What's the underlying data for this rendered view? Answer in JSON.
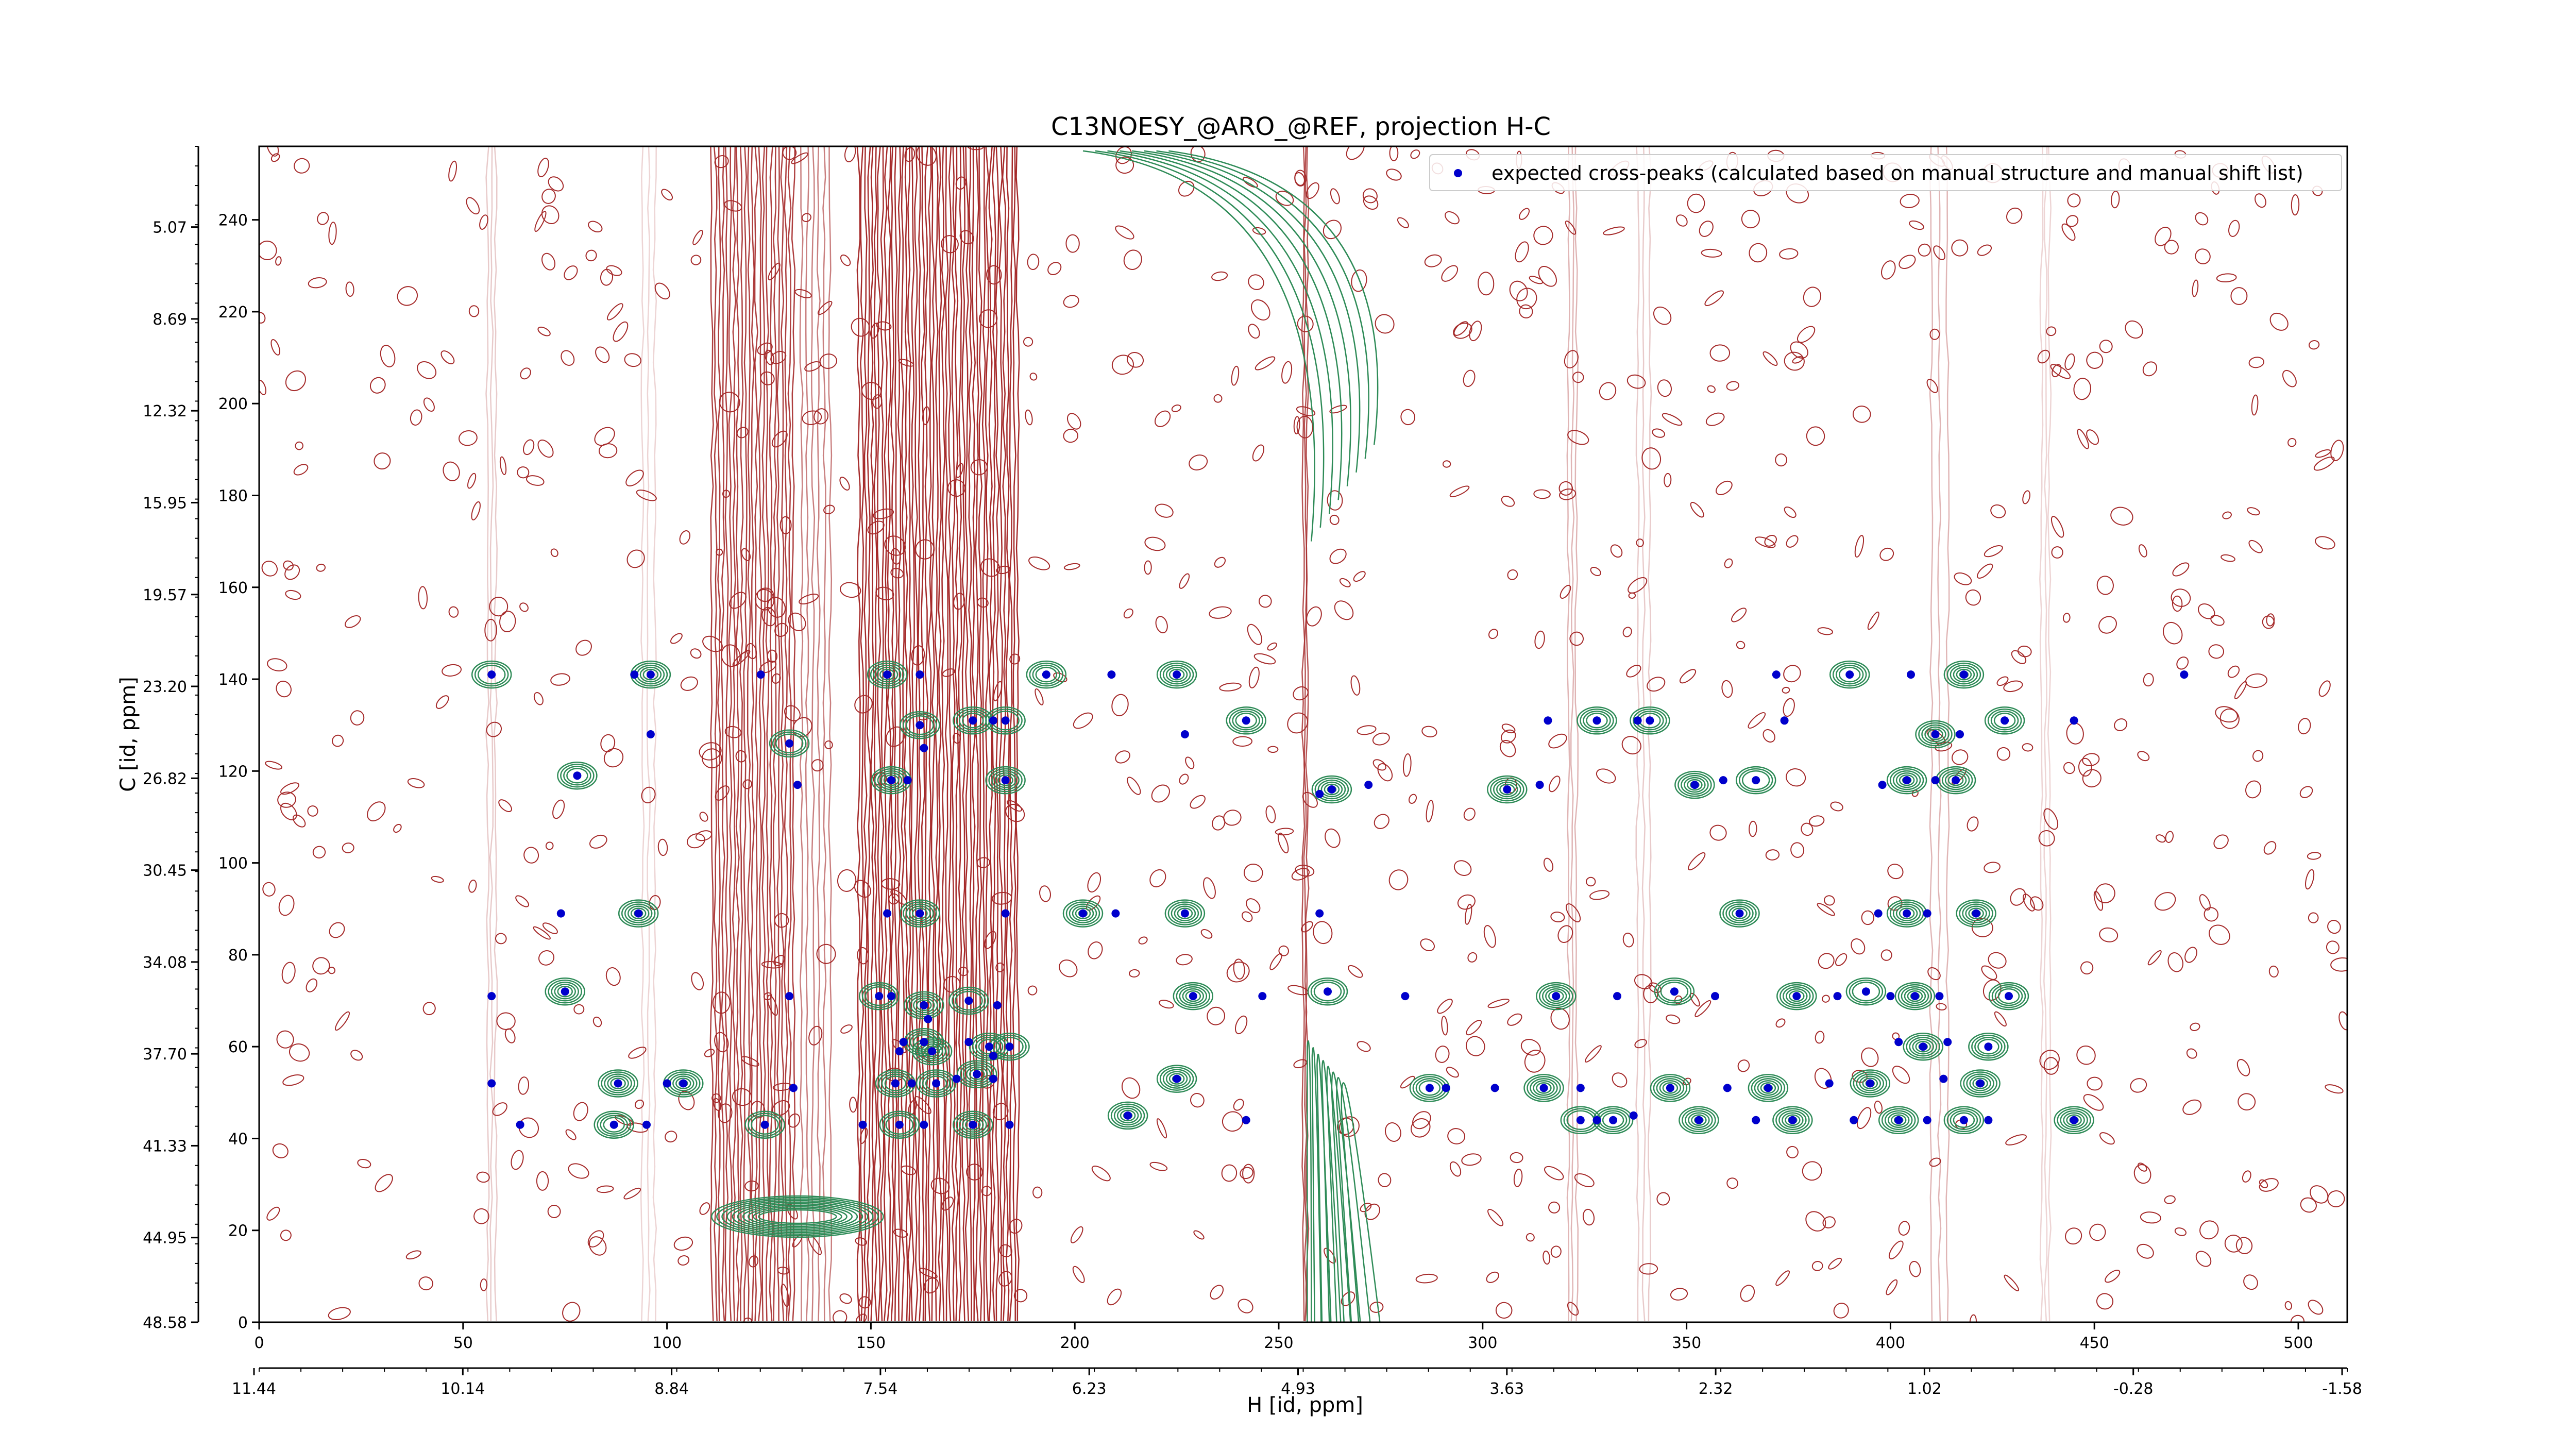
{
  "colors": {
    "negative_contour": "#a52a2a",
    "positive_contour": "#2e8b57",
    "peak_marker": "#0000cc",
    "axis": "#000000"
  },
  "chart_data": {
    "type": "scatter",
    "title": "C13NOESY_@ARO_@REF, projection H-C",
    "xlabel": "H [id, ppm]",
    "ylabel": "C [id, ppm]",
    "xlim": [
      0,
      512
    ],
    "ylim": [
      0,
      256
    ],
    "x_index_ticks": [
      0,
      50,
      100,
      150,
      200,
      250,
      300,
      350,
      400,
      450,
      500
    ],
    "x_ppm_ticks": [
      "11.44",
      "10.14",
      "8.84",
      "7.54",
      "6.23",
      "4.93",
      "3.63",
      "2.32",
      "1.02",
      "-0.28",
      "-1.58"
    ],
    "y_index_ticks": [
      0,
      20,
      40,
      60,
      80,
      100,
      120,
      140,
      160,
      180,
      200,
      220,
      240
    ],
    "y_ppm_ticks": [
      "48.58",
      "44.95",
      "41.33",
      "37.70",
      "34.08",
      "30.45",
      "26.82",
      "23.20",
      "19.57",
      "15.95",
      "12.32",
      "8.69",
      "5.07"
    ],
    "legend": {
      "placement": "top-right",
      "label": "expected cross-peaks (calculated based on manual structure and manual shift list)"
    },
    "series": [
      {
        "name": "expected cross-peaks (calculated based on manual structure and manual shift list)",
        "points": [
          [
            57,
            141
          ],
          [
            92,
            141
          ],
          [
            96,
            141
          ],
          [
            123,
            141
          ],
          [
            154,
            141
          ],
          [
            162,
            141
          ],
          [
            193,
            141
          ],
          [
            209,
            141
          ],
          [
            225,
            141
          ],
          [
            372,
            141
          ],
          [
            390,
            141
          ],
          [
            405,
            141
          ],
          [
            418,
            141
          ],
          [
            472,
            141
          ],
          [
            130,
            126
          ],
          [
            96,
            128
          ],
          [
            162,
            130
          ],
          [
            163,
            125
          ],
          [
            175,
            131
          ],
          [
            180,
            131
          ],
          [
            183,
            131
          ],
          [
            227,
            128
          ],
          [
            242,
            131
          ],
          [
            316,
            131
          ],
          [
            328,
            131
          ],
          [
            338,
            131
          ],
          [
            341,
            131
          ],
          [
            374,
            131
          ],
          [
            411,
            128
          ],
          [
            417,
            128
          ],
          [
            428,
            131
          ],
          [
            445,
            131
          ],
          [
            78,
            119
          ],
          [
            132,
            117
          ],
          [
            155,
            118
          ],
          [
            159,
            118
          ],
          [
            183,
            118
          ],
          [
            260,
            115
          ],
          [
            263,
            116
          ],
          [
            272,
            117
          ],
          [
            306,
            116
          ],
          [
            314,
            117
          ],
          [
            352,
            117
          ],
          [
            359,
            118
          ],
          [
            367,
            118
          ],
          [
            398,
            117
          ],
          [
            404,
            118
          ],
          [
            411,
            118
          ],
          [
            416,
            118
          ],
          [
            74,
            89
          ],
          [
            93,
            89
          ],
          [
            154,
            89
          ],
          [
            162,
            89
          ],
          [
            183,
            89
          ],
          [
            202,
            89
          ],
          [
            210,
            89
          ],
          [
            227,
            89
          ],
          [
            260,
            89
          ],
          [
            363,
            89
          ],
          [
            397,
            89
          ],
          [
            404,
            89
          ],
          [
            409,
            89
          ],
          [
            421,
            89
          ],
          [
            57,
            71
          ],
          [
            75,
            72
          ],
          [
            130,
            71
          ],
          [
            152,
            71
          ],
          [
            155,
            71
          ],
          [
            163,
            69
          ],
          [
            164,
            66
          ],
          [
            174,
            70
          ],
          [
            181,
            69
          ],
          [
            229,
            71
          ],
          [
            246,
            71
          ],
          [
            262,
            72
          ],
          [
            281,
            71
          ],
          [
            318,
            71
          ],
          [
            333,
            71
          ],
          [
            347,
            72
          ],
          [
            357,
            71
          ],
          [
            377,
            71
          ],
          [
            387,
            71
          ],
          [
            394,
            72
          ],
          [
            400,
            71
          ],
          [
            406,
            71
          ],
          [
            412,
            71
          ],
          [
            429,
            71
          ],
          [
            158,
            61
          ],
          [
            163,
            61
          ],
          [
            157,
            59
          ],
          [
            165,
            59
          ],
          [
            174,
            61
          ],
          [
            179,
            60
          ],
          [
            180,
            58
          ],
          [
            184,
            60
          ],
          [
            402,
            61
          ],
          [
            408,
            60
          ],
          [
            414,
            61
          ],
          [
            424,
            60
          ],
          [
            57,
            52
          ],
          [
            88,
            52
          ],
          [
            100,
            52
          ],
          [
            104,
            52
          ],
          [
            131,
            51
          ],
          [
            156,
            52
          ],
          [
            160,
            52
          ],
          [
            166,
            52
          ],
          [
            171,
            53
          ],
          [
            176,
            54
          ],
          [
            180,
            53
          ],
          [
            225,
            53
          ],
          [
            291,
            51
          ],
          [
            287,
            51
          ],
          [
            303,
            51
          ],
          [
            315,
            51
          ],
          [
            324,
            51
          ],
          [
            346,
            51
          ],
          [
            360,
            51
          ],
          [
            370,
            51
          ],
          [
            385,
            52
          ],
          [
            395,
            52
          ],
          [
            413,
            53
          ],
          [
            422,
            52
          ],
          [
            64,
            43
          ],
          [
            87,
            43
          ],
          [
            95,
            43
          ],
          [
            124,
            43
          ],
          [
            148,
            43
          ],
          [
            157,
            43
          ],
          [
            163,
            43
          ],
          [
            175,
            43
          ],
          [
            184,
            43
          ],
          [
            213,
            45
          ],
          [
            242,
            44
          ],
          [
            324,
            44
          ],
          [
            328,
            44
          ],
          [
            332,
            44
          ],
          [
            337,
            45
          ],
          [
            353,
            44
          ],
          [
            367,
            44
          ],
          [
            376,
            44
          ],
          [
            391,
            44
          ],
          [
            402,
            44
          ],
          [
            409,
            44
          ],
          [
            418,
            44
          ],
          [
            424,
            44
          ],
          [
            445,
            44
          ]
        ]
      }
    ]
  }
}
